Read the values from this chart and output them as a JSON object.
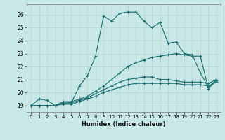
{
  "xlabel": "Humidex (Indice chaleur)",
  "bg_color": "#c8e8e8",
  "line_color": "#1a6b6b",
  "xlim": [
    -0.5,
    23.5
  ],
  "ylim": [
    18.5,
    26.8
  ],
  "yticks": [
    19,
    20,
    21,
    22,
    23,
    24,
    25,
    26
  ],
  "xticks": [
    0,
    1,
    2,
    3,
    4,
    5,
    6,
    7,
    8,
    9,
    10,
    11,
    12,
    13,
    14,
    15,
    16,
    17,
    18,
    19,
    20,
    21,
    22,
    23
  ],
  "lines": [
    {
      "x": [
        0,
        1,
        2,
        3,
        4,
        5,
        6,
        7,
        8,
        9,
        10,
        11,
        12,
        13,
        14,
        15,
        16,
        17,
        18,
        19,
        20,
        21,
        22,
        23
      ],
      "y": [
        19.0,
        19.5,
        19.4,
        19.0,
        19.2,
        19.2,
        20.5,
        21.3,
        22.8,
        25.9,
        25.5,
        26.1,
        26.2,
        26.2,
        25.5,
        25.0,
        25.4,
        23.8,
        23.9,
        23.0,
        22.9,
        21.5,
        20.4,
        21.0
      ]
    },
    {
      "x": [
        0,
        1,
        2,
        3,
        4,
        5,
        6,
        7,
        8,
        9,
        10,
        11,
        12,
        13,
        14,
        15,
        16,
        17,
        18,
        19,
        20,
        21,
        22,
        23
      ],
      "y": [
        19.0,
        19.0,
        19.0,
        19.0,
        19.3,
        19.3,
        19.5,
        19.7,
        20.1,
        20.5,
        21.0,
        21.5,
        22.0,
        22.3,
        22.5,
        22.7,
        22.8,
        22.9,
        23.0,
        22.9,
        22.8,
        22.8,
        20.3,
        20.9
      ]
    },
    {
      "x": [
        0,
        1,
        2,
        3,
        4,
        5,
        6,
        7,
        8,
        9,
        10,
        11,
        12,
        13,
        14,
        15,
        16,
        17,
        18,
        19,
        20,
        21,
        22,
        23
      ],
      "y": [
        19.0,
        19.0,
        19.0,
        19.0,
        19.2,
        19.2,
        19.4,
        19.6,
        19.9,
        20.2,
        20.5,
        20.8,
        21.0,
        21.1,
        21.2,
        21.2,
        21.0,
        21.0,
        20.9,
        20.8,
        20.8,
        20.8,
        20.7,
        21.0
      ]
    },
    {
      "x": [
        0,
        1,
        2,
        3,
        4,
        5,
        6,
        7,
        8,
        9,
        10,
        11,
        12,
        13,
        14,
        15,
        16,
        17,
        18,
        19,
        20,
        21,
        22,
        23
      ],
      "y": [
        19.0,
        19.0,
        19.0,
        19.0,
        19.1,
        19.1,
        19.3,
        19.5,
        19.7,
        20.0,
        20.2,
        20.4,
        20.6,
        20.7,
        20.7,
        20.7,
        20.7,
        20.7,
        20.7,
        20.6,
        20.6,
        20.6,
        20.5,
        20.8
      ]
    }
  ]
}
